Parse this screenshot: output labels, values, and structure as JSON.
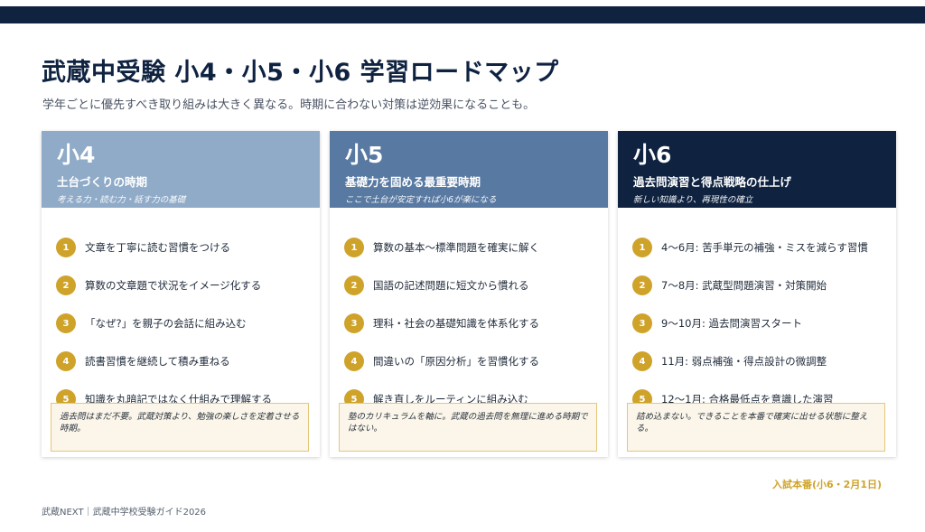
{
  "header": {
    "title": "武蔵中受験 小4・小5・小6 学習ロードマップ",
    "subtitle": "学年ごとに優先すべき取り組みは大きく異なる。時期に合わない対策は逆効果になることも。"
  },
  "colors": {
    "topbar": "#0f2341",
    "grade4": "#8fabc8",
    "grade5": "#5879a1",
    "grade6": "#0f2341",
    "accent_gold": "#cfa32a",
    "note_bg": "#fbf6e9"
  },
  "cards": [
    {
      "grade": "小4",
      "phase": "土台づくりの時期",
      "tagline": "考える力・読む力・話す力の基礎",
      "items": [
        {
          "num": "1",
          "text": "文章を丁寧に読む習慣をつける"
        },
        {
          "num": "2",
          "text": "算数の文章題で状況をイメージ化する"
        },
        {
          "num": "3",
          "text": "「なぜ?」を親子の会話に組み込む"
        },
        {
          "num": "4",
          "text": "読書習慣を継続して積み重ねる"
        },
        {
          "num": "5",
          "text": "知識を丸暗記ではなく仕組みで理解する"
        }
      ],
      "note": "過去問はまだ不要。武蔵対策より、勉強の楽しさを定着させる時期。"
    },
    {
      "grade": "小5",
      "phase": "基礎力を固める最重要時期",
      "tagline": "ここで土台が安定すれば小6が楽になる",
      "items": [
        {
          "num": "1",
          "text": "算数の基本〜標準問題を確実に解く"
        },
        {
          "num": "2",
          "text": "国語の記述問題に短文から慣れる"
        },
        {
          "num": "3",
          "text": "理科・社会の基礎知識を体系化する"
        },
        {
          "num": "4",
          "text": "間違いの「原因分析」を習慣化する"
        },
        {
          "num": "5",
          "text": "解き直しをルーティンに組み込む"
        }
      ],
      "note": "塾のカリキュラムを軸に。武蔵の過去問を無理に進める時期ではない。"
    },
    {
      "grade": "小6",
      "phase": "過去問演習と得点戦略の仕上げ",
      "tagline": "新しい知識より、再現性の確立",
      "items": [
        {
          "num": "1",
          "text": "4〜6月: 苦手単元の補強・ミスを減らす習慣"
        },
        {
          "num": "2",
          "text": "7〜8月: 武蔵型問題演習・対策開始"
        },
        {
          "num": "3",
          "text": "9〜10月: 過去問演習スタート"
        },
        {
          "num": "4",
          "text": "11月: 弱点補強・得点設計の微調整"
        },
        {
          "num": "5",
          "text": "12〜1月: 合格最低点を意識した演習"
        }
      ],
      "note": "詰め込まない。できることを本番で確実に出せる状態に整える。"
    }
  ],
  "exam_label": "入試本番(小6・2月1日)",
  "footer": "武蔵NEXT｜武蔵中学校受験ガイド2026"
}
